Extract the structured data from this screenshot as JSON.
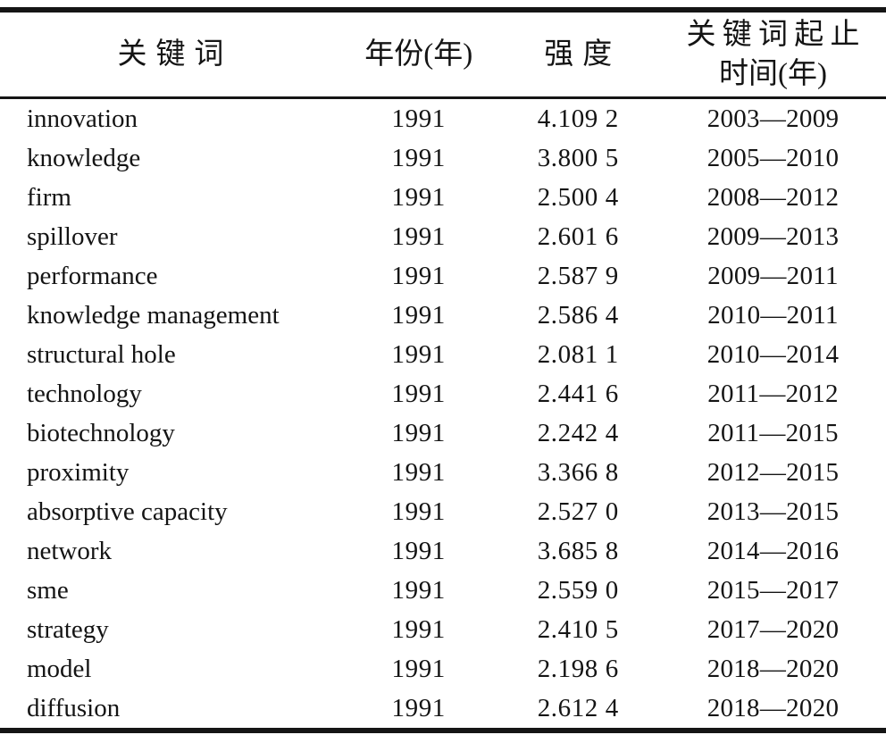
{
  "document": {
    "type": "academic-paper-table",
    "language": "zh-CN"
  },
  "colors": {
    "background": "#ffffff",
    "text": "#141414",
    "rule": "#151515"
  },
  "table": {
    "columns": [
      {
        "key": "keyword",
        "label": "关键词"
      },
      {
        "key": "year",
        "label": "年份(年)"
      },
      {
        "key": "strength",
        "label": "强度"
      },
      {
        "key": "period",
        "label_line1": "关键词起止",
        "label_line2": "时间(年)"
      }
    ],
    "rows": [
      {
        "keyword": "innovation",
        "year": "1991",
        "strength": "4.109 2",
        "period": "2003—2009"
      },
      {
        "keyword": "knowledge",
        "year": "1991",
        "strength": "3.800 5",
        "period": "2005—2010"
      },
      {
        "keyword": "firm",
        "year": "1991",
        "strength": "2.500 4",
        "period": "2008—2012"
      },
      {
        "keyword": "spillover",
        "year": "1991",
        "strength": "2.601 6",
        "period": "2009—2013"
      },
      {
        "keyword": "performance",
        "year": "1991",
        "strength": "2.587 9",
        "period": "2009—2011"
      },
      {
        "keyword": "knowledge management",
        "year": "1991",
        "strength": "2.586 4",
        "period": "2010—2011"
      },
      {
        "keyword": "structural hole",
        "year": "1991",
        "strength": "2.081 1",
        "period": "2010—2014"
      },
      {
        "keyword": "technology",
        "year": "1991",
        "strength": "2.441 6",
        "period": "2011—2012"
      },
      {
        "keyword": "biotechnology",
        "year": "1991",
        "strength": "2.242 4",
        "period": "2011—2015"
      },
      {
        "keyword": "proximity",
        "year": "1991",
        "strength": "3.366 8",
        "period": "2012—2015"
      },
      {
        "keyword": "absorptive capacity",
        "year": "1991",
        "strength": "2.527 0",
        "period": "2013—2015"
      },
      {
        "keyword": "network",
        "year": "1991",
        "strength": "3.685 8",
        "period": "2014—2016"
      },
      {
        "keyword": "sme",
        "year": "1991",
        "strength": "2.559 0",
        "period": "2015—2017"
      },
      {
        "keyword": "strategy",
        "year": "1991",
        "strength": "2.410 5",
        "period": "2017—2020"
      },
      {
        "keyword": "model",
        "year": "1991",
        "strength": "2.198 6",
        "period": "2018—2020"
      },
      {
        "keyword": "diffusion",
        "year": "1991",
        "strength": "2.612 4",
        "period": "2018—2020"
      }
    ]
  }
}
